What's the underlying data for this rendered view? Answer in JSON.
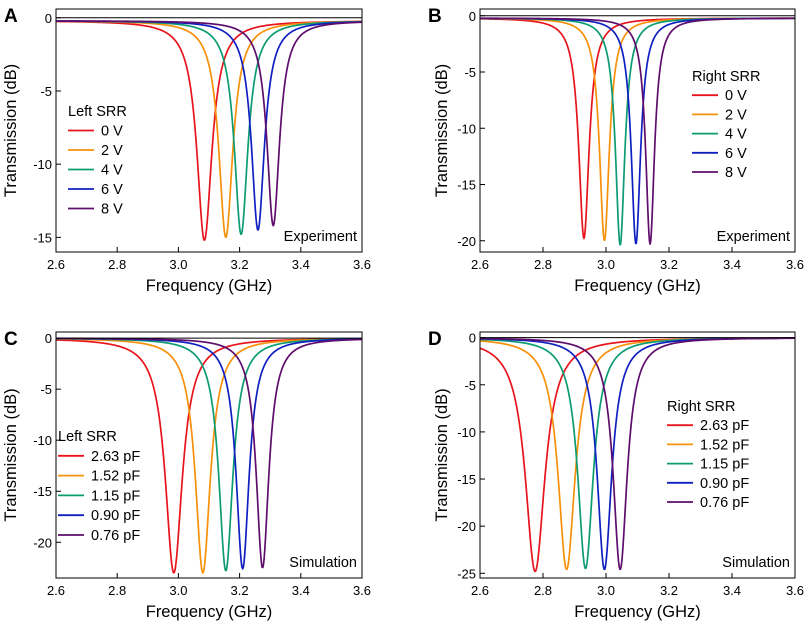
{
  "chart_data": [
    {
      "type": "line",
      "panel_label": "A",
      "xlabel": "Frequency (GHz)",
      "ylabel": "Transmission (dB)",
      "xlim": [
        2.6,
        3.6
      ],
      "ylim": [
        -16,
        0.6
      ],
      "xticks": [
        "2.6",
        "2.8",
        "3.0",
        "3.2",
        "3.4",
        "3.6"
      ],
      "yticks": [
        "0",
        "-5",
        "-10",
        "-15"
      ],
      "legend_title": "Left SRR",
      "annotation": "Experiment",
      "series": [
        {
          "name": "0 V",
          "color": "#e8141c",
          "f0": 3.085,
          "depth": -15.2,
          "width": 0.03,
          "baseline": -0.2
        },
        {
          "name": "2 V",
          "color": "#f7900a",
          "f0": 3.155,
          "depth": -15.0,
          "width": 0.028,
          "baseline": -0.2
        },
        {
          "name": "4 V",
          "color": "#0c9b72",
          "f0": 3.205,
          "depth": -14.8,
          "width": 0.027,
          "baseline": -0.2
        },
        {
          "name": "6 V",
          "color": "#1020c0",
          "f0": 3.26,
          "depth": -14.5,
          "width": 0.026,
          "baseline": -0.2
        },
        {
          "name": "8 V",
          "color": "#5e0d6c",
          "f0": 3.31,
          "depth": -14.2,
          "width": 0.025,
          "baseline": -0.2
        }
      ]
    },
    {
      "type": "line",
      "panel_label": "B",
      "xlabel": "Frequency (GHz)",
      "ylabel": "Transmission (dB)",
      "xlim": [
        2.6,
        3.6
      ],
      "ylim": [
        -21,
        0.6
      ],
      "xticks": [
        "2.6",
        "2.8",
        "3.0",
        "3.2",
        "3.4",
        "3.6"
      ],
      "yticks": [
        "0",
        "-5",
        "-10",
        "-15",
        "-20"
      ],
      "legend_title": "Right SRR",
      "annotation": "Experiment",
      "series": [
        {
          "name": "0 V",
          "color": "#e8141c",
          "f0": 2.93,
          "depth": -19.8,
          "width": 0.02,
          "baseline": -0.2
        },
        {
          "name": "2 V",
          "color": "#f7900a",
          "f0": 2.995,
          "depth": -20.0,
          "width": 0.019,
          "baseline": -0.2
        },
        {
          "name": "4 V",
          "color": "#0c9b72",
          "f0": 3.045,
          "depth": -20.4,
          "width": 0.018,
          "baseline": -0.2
        },
        {
          "name": "6 V",
          "color": "#1020c0",
          "f0": 3.095,
          "depth": -20.3,
          "width": 0.018,
          "baseline": -0.2
        },
        {
          "name": "8 V",
          "color": "#5e0d6c",
          "f0": 3.14,
          "depth": -20.3,
          "width": 0.017,
          "baseline": -0.2
        }
      ]
    },
    {
      "type": "line",
      "panel_label": "C",
      "xlabel": "Frequency (GHz)",
      "ylabel": "Transmission (dB)",
      "xlim": [
        2.6,
        3.6
      ],
      "ylim": [
        -23.5,
        0.6
      ],
      "xticks": [
        "2.6",
        "2.8",
        "3.0",
        "3.2",
        "3.4",
        "3.6"
      ],
      "yticks": [
        "0",
        "-5",
        "-10",
        "-15",
        "-20"
      ],
      "legend_title": "Left SRR",
      "annotation": "Simulation",
      "series": [
        {
          "name": "2.63 pF",
          "color": "#e8141c",
          "f0": 2.985,
          "depth": -23.0,
          "width": 0.034,
          "baseline": 0
        },
        {
          "name": "1.52 pF",
          "color": "#f7900a",
          "f0": 3.08,
          "depth": -23.0,
          "width": 0.03,
          "baseline": 0
        },
        {
          "name": "1.15 pF",
          "color": "#0c9b72",
          "f0": 3.155,
          "depth": -22.8,
          "width": 0.028,
          "baseline": 0
        },
        {
          "name": "0.90 pF",
          "color": "#1020c0",
          "f0": 3.21,
          "depth": -22.6,
          "width": 0.026,
          "baseline": 0
        },
        {
          "name": "0.76 pF",
          "color": "#5e0d6c",
          "f0": 3.275,
          "depth": -22.5,
          "width": 0.025,
          "baseline": 0
        }
      ]
    },
    {
      "type": "line",
      "panel_label": "D",
      "xlabel": "Frequency (GHz)",
      "ylabel": "Transmission (dB)",
      "xlim": [
        2.6,
        3.6
      ],
      "ylim": [
        -25.5,
        0.6
      ],
      "xticks": [
        "2.6",
        "2.8",
        "3.0",
        "3.2",
        "3.4",
        "3.6"
      ],
      "yticks": [
        "0",
        "-5",
        "-10",
        "-15",
        "-20",
        "-25"
      ],
      "legend_title": "Right SRR",
      "annotation": "Simulation",
      "series": [
        {
          "name": "2.63 pF",
          "color": "#e8141c",
          "f0": 2.775,
          "depth": -24.8,
          "width": 0.038,
          "baseline": 0
        },
        {
          "name": "1.52 pF",
          "color": "#f7900a",
          "f0": 2.875,
          "depth": -24.6,
          "width": 0.033,
          "baseline": 0
        },
        {
          "name": "1.15 pF",
          "color": "#0c9b72",
          "f0": 2.935,
          "depth": -24.5,
          "width": 0.03,
          "baseline": 0
        },
        {
          "name": "0.90 pF",
          "color": "#1020c0",
          "f0": 2.995,
          "depth": -24.6,
          "width": 0.028,
          "baseline": 0
        },
        {
          "name": "0.76 pF",
          "color": "#5e0d6c",
          "f0": 3.045,
          "depth": -24.6,
          "width": 0.027,
          "baseline": 0
        }
      ]
    }
  ]
}
